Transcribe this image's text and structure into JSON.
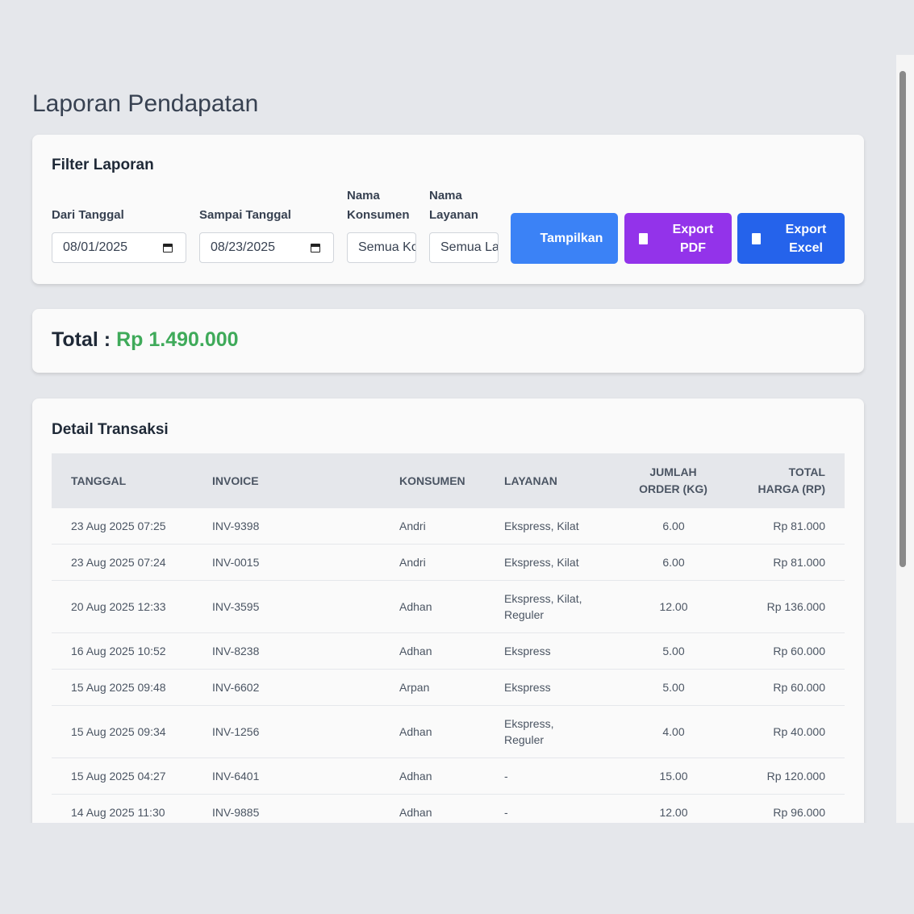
{
  "title": "Laporan Pendapatan",
  "filter": {
    "title": "Filter Laporan",
    "fields": [
      {
        "label": "Dari Tanggal",
        "value": "08/01/2025"
      },
      {
        "label": "Sampai Tanggal",
        "value": "08/23/2025"
      },
      {
        "label": "Nama Konsumen",
        "value": "Semua Konsumen"
      },
      {
        "label": "Nama Layanan",
        "value": "Semua Layanan"
      }
    ],
    "buttons": [
      "Tampilkan",
      "Export PDF",
      "Export Excel"
    ]
  },
  "total": {
    "label": "Total :",
    "value": "Rp 1.490.000"
  },
  "detail": {
    "title": "Detail Transaksi",
    "headers": [
      "TANGGAL",
      "INVOICE",
      "KONSUMEN",
      "LAYANAN",
      "JUMLAH ORDER (KG)",
      "TOTAL HARGA (RP)"
    ],
    "rows": [
      [
        "23 Aug 2025 07:25",
        "INV-9398",
        "Andri",
        "Ekspress, Kilat",
        "6.00",
        "Rp 81.000"
      ],
      [
        "23 Aug 2025 07:24",
        "INV-0015",
        "Andri",
        "Ekspress, Kilat",
        "6.00",
        "Rp 81.000"
      ],
      [
        "20 Aug 2025 12:33",
        "INV-3595",
        "Adhan",
        "Ekspress, Kilat, Reguler",
        "12.00",
        "Rp 136.000"
      ],
      [
        "16 Aug 2025 10:52",
        "INV-8238",
        "Adhan",
        "Ekspress",
        "5.00",
        "Rp 60.000"
      ],
      [
        "15 Aug 2025 09:48",
        "INV-6602",
        "Arpan",
        "Ekspress",
        "5.00",
        "Rp 60.000"
      ],
      [
        "15 Aug 2025 09:34",
        "INV-1256",
        "Adhan",
        "Ekspress, Reguler",
        "4.00",
        "Rp 40.000"
      ],
      [
        "15 Aug 2025 04:27",
        "INV-6401",
        "Adhan",
        "-",
        "15.00",
        "Rp 120.000"
      ],
      [
        "14 Aug 2025 11:30",
        "INV-9885",
        "Adhan",
        "-",
        "12.00",
        "Rp 96.000"
      ]
    ]
  }
}
